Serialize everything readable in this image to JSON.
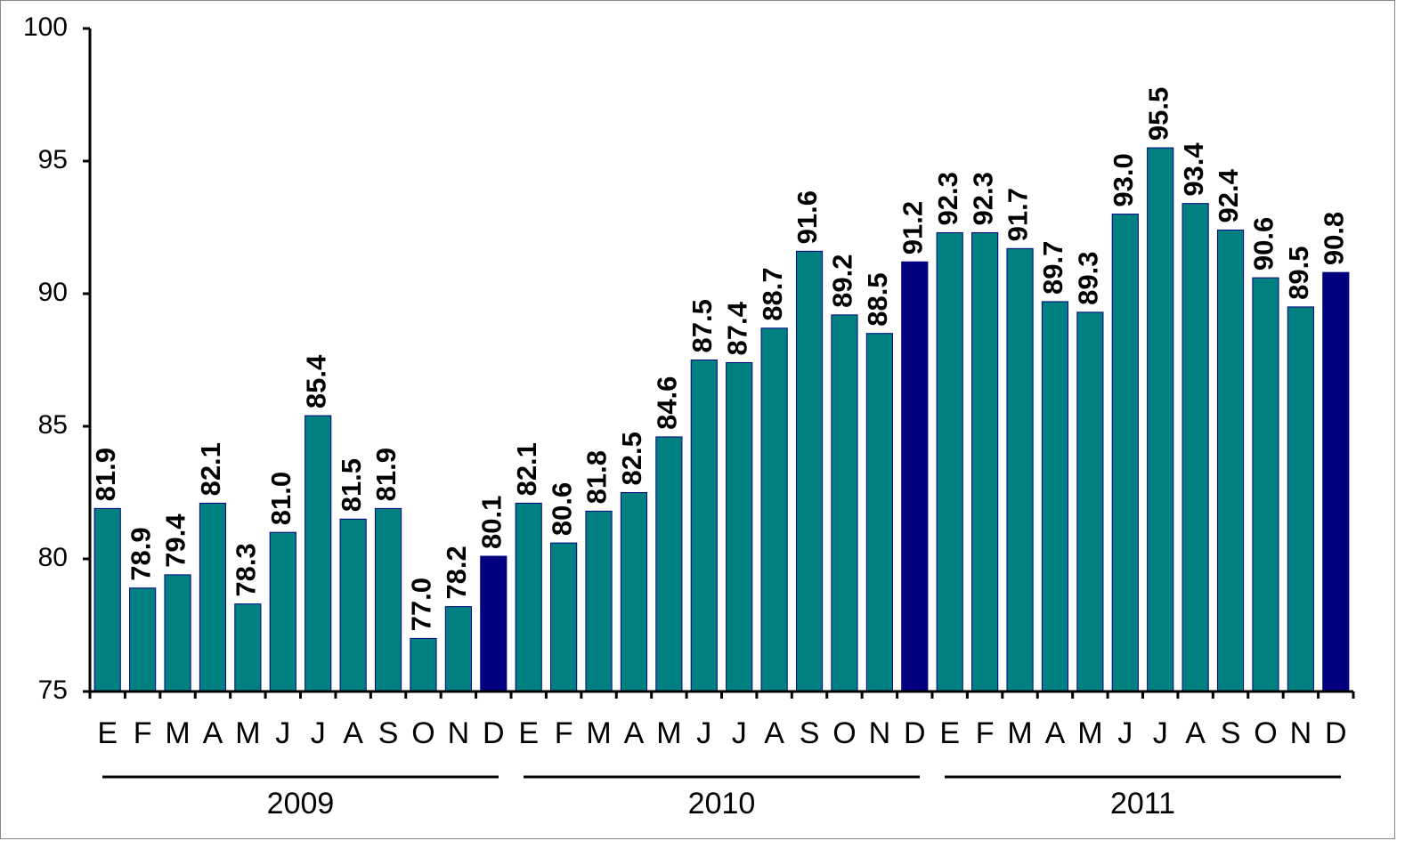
{
  "chart_data": {
    "type": "bar",
    "categories": [
      "E",
      "F",
      "M",
      "A",
      "M",
      "J",
      "J",
      "A",
      "S",
      "O",
      "N",
      "D",
      "E",
      "F",
      "M",
      "A",
      "M",
      "J",
      "J",
      "A",
      "S",
      "O",
      "N",
      "D",
      "E",
      "F",
      "M",
      "A",
      "M",
      "J",
      "J",
      "A",
      "S",
      "O",
      "N",
      "D"
    ],
    "years": [
      "2009",
      "2010",
      "2011"
    ],
    "values": [
      81.9,
      78.9,
      79.4,
      82.1,
      78.3,
      81.0,
      85.4,
      81.5,
      81.9,
      77.0,
      78.2,
      80.1,
      82.1,
      80.6,
      81.8,
      82.5,
      84.6,
      87.5,
      87.4,
      88.7,
      91.6,
      89.2,
      88.5,
      91.2,
      92.3,
      92.3,
      91.7,
      89.7,
      89.3,
      93.0,
      95.5,
      93.4,
      92.4,
      90.6,
      89.5,
      90.8
    ],
    "value_labels": [
      "81.9",
      "78.9",
      "79.4",
      "82.1",
      "78.3",
      "81.0",
      "85.4",
      "81.5",
      "81.9",
      "77.0",
      "78.2",
      "80.1",
      "82.1",
      "80.6",
      "81.8",
      "82.5",
      "84.6",
      "87.5",
      "87.4",
      "88.7",
      "91.6",
      "89.2",
      "88.5",
      "91.2",
      "92.3",
      "92.3",
      "91.7",
      "89.7",
      "89.3",
      "93.0",
      "95.5",
      "93.4",
      "92.4",
      "90.6",
      "89.5",
      "90.8"
    ],
    "colors": [
      "#008080",
      "#008080",
      "#008080",
      "#008080",
      "#008080",
      "#008080",
      "#008080",
      "#008080",
      "#008080",
      "#008080",
      "#008080",
      "#000080",
      "#008080",
      "#008080",
      "#008080",
      "#008080",
      "#008080",
      "#008080",
      "#008080",
      "#008080",
      "#008080",
      "#008080",
      "#008080",
      "#000080",
      "#008080",
      "#008080",
      "#008080",
      "#008080",
      "#008080",
      "#008080",
      "#008080",
      "#008080",
      "#008080",
      "#008080",
      "#008080",
      "#000080"
    ],
    "ylim": [
      75,
      100
    ],
    "yticks": [
      75,
      80,
      85,
      90,
      95,
      100
    ],
    "grid": false
  }
}
